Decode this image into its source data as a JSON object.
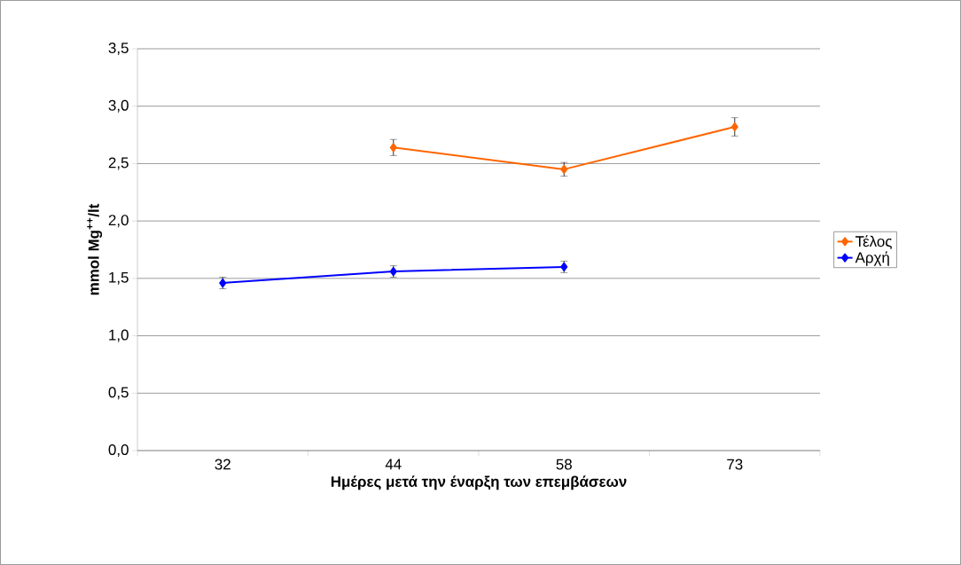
{
  "chart_data": {
    "type": "line",
    "xlabel": "Ημέρες μετά την έναρξη των επεμβάσεων",
    "ylabel": "mmol Mg$^{++}$/lt",
    "categories": [
      "32",
      "44",
      "58",
      "73"
    ],
    "series": [
      {
        "name": "Τέλος",
        "color": "#ff6600",
        "values": [
          null,
          2.64,
          2.45,
          2.82
        ],
        "errors": [
          null,
          0.07,
          0.06,
          0.08
        ]
      },
      {
        "name": "Αρχή",
        "color": "#0000ff",
        "values": [
          1.46,
          1.56,
          1.6,
          null
        ],
        "errors": [
          0.05,
          0.05,
          0.05,
          null
        ]
      }
    ],
    "ylim": [
      0,
      3.5
    ],
    "yticks": [
      {
        "value": 0,
        "label": "0,0"
      },
      {
        "value": 0.5,
        "label": "0,5"
      },
      {
        "value": 1,
        "label": "1,0"
      },
      {
        "value": 1.5,
        "label": "1,5"
      },
      {
        "value": 2,
        "label": "2,0"
      },
      {
        "value": 2.5,
        "label": "2,5"
      },
      {
        "value": 3,
        "label": "3,0"
      },
      {
        "value": 3.5,
        "label": "3,5"
      }
    ],
    "grid": "y",
    "legend": "right",
    "marker": "diamond"
  }
}
